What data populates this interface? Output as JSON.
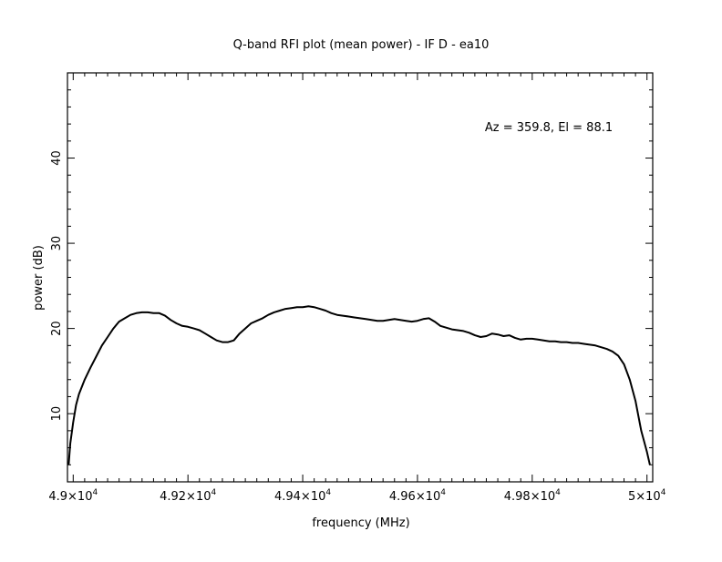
{
  "chart_data": {
    "type": "line",
    "title": "Q-band RFI plot (mean power) - IF D - ea10",
    "xlabel": "frequency (MHz)",
    "ylabel": "power (dB)",
    "xlim": [
      48990,
      50010
    ],
    "ylim": [
      2,
      50
    ],
    "x_ticks": [
      {
        "value": 49000,
        "label": "4.9×10",
        "exp": "4"
      },
      {
        "value": 49200,
        "label": "4.92×10",
        "exp": "4"
      },
      {
        "value": 49400,
        "label": "4.94×10",
        "exp": "4"
      },
      {
        "value": 49600,
        "label": "4.96×10",
        "exp": "4"
      },
      {
        "value": 49800,
        "label": "4.98×10",
        "exp": "4"
      },
      {
        "value": 50000,
        "label": "5×10",
        "exp": "4"
      }
    ],
    "y_ticks": [
      {
        "value": 10,
        "label": "10"
      },
      {
        "value": 20,
        "label": "20"
      },
      {
        "value": 30,
        "label": "30"
      },
      {
        "value": 40,
        "label": "40"
      }
    ],
    "grid": false,
    "annotation": "Az = 359.8, El = 88.1",
    "series": [
      {
        "color": "#000000",
        "points": [
          [
            48992,
            4.0
          ],
          [
            48995,
            6.5
          ],
          [
            49000,
            9.0
          ],
          [
            49005,
            11.0
          ],
          [
            49010,
            12.3
          ],
          [
            49020,
            14.0
          ],
          [
            49030,
            15.4
          ],
          [
            49040,
            16.7
          ],
          [
            49050,
            18.0
          ],
          [
            49060,
            19.0
          ],
          [
            49070,
            20.0
          ],
          [
            49080,
            20.8
          ],
          [
            49090,
            21.2
          ],
          [
            49100,
            21.6
          ],
          [
            49110,
            21.8
          ],
          [
            49120,
            21.9
          ],
          [
            49130,
            21.9
          ],
          [
            49140,
            21.8
          ],
          [
            49150,
            21.8
          ],
          [
            49160,
            21.5
          ],
          [
            49170,
            21.0
          ],
          [
            49180,
            20.6
          ],
          [
            49190,
            20.3
          ],
          [
            49200,
            20.2
          ],
          [
            49210,
            20.0
          ],
          [
            49220,
            19.8
          ],
          [
            49230,
            19.4
          ],
          [
            49240,
            19.0
          ],
          [
            49250,
            18.6
          ],
          [
            49260,
            18.4
          ],
          [
            49270,
            18.4
          ],
          [
            49280,
            18.6
          ],
          [
            49290,
            19.4
          ],
          [
            49300,
            20.0
          ],
          [
            49310,
            20.6
          ],
          [
            49320,
            20.9
          ],
          [
            49330,
            21.2
          ],
          [
            49340,
            21.6
          ],
          [
            49350,
            21.9
          ],
          [
            49360,
            22.1
          ],
          [
            49370,
            22.3
          ],
          [
            49380,
            22.4
          ],
          [
            49390,
            22.5
          ],
          [
            49400,
            22.5
          ],
          [
            49410,
            22.6
          ],
          [
            49420,
            22.5
          ],
          [
            49430,
            22.3
          ],
          [
            49440,
            22.1
          ],
          [
            49450,
            21.8
          ],
          [
            49460,
            21.6
          ],
          [
            49470,
            21.5
          ],
          [
            49480,
            21.4
          ],
          [
            49490,
            21.3
          ],
          [
            49500,
            21.2
          ],
          [
            49510,
            21.1
          ],
          [
            49520,
            21.0
          ],
          [
            49530,
            20.9
          ],
          [
            49540,
            20.9
          ],
          [
            49550,
            21.0
          ],
          [
            49560,
            21.1
          ],
          [
            49570,
            21.0
          ],
          [
            49580,
            20.9
          ],
          [
            49590,
            20.8
          ],
          [
            49600,
            20.9
          ],
          [
            49610,
            21.1
          ],
          [
            49620,
            21.2
          ],
          [
            49630,
            20.8
          ],
          [
            49640,
            20.3
          ],
          [
            49650,
            20.1
          ],
          [
            49660,
            19.9
          ],
          [
            49670,
            19.8
          ],
          [
            49680,
            19.7
          ],
          [
            49690,
            19.5
          ],
          [
            49700,
            19.2
          ],
          [
            49710,
            19.0
          ],
          [
            49720,
            19.1
          ],
          [
            49730,
            19.4
          ],
          [
            49740,
            19.3
          ],
          [
            49750,
            19.1
          ],
          [
            49760,
            19.2
          ],
          [
            49770,
            18.9
          ],
          [
            49780,
            18.7
          ],
          [
            49790,
            18.8
          ],
          [
            49800,
            18.8
          ],
          [
            49810,
            18.7
          ],
          [
            49820,
            18.6
          ],
          [
            49830,
            18.5
          ],
          [
            49840,
            18.5
          ],
          [
            49850,
            18.4
          ],
          [
            49860,
            18.4
          ],
          [
            49870,
            18.3
          ],
          [
            49880,
            18.3
          ],
          [
            49890,
            18.2
          ],
          [
            49900,
            18.1
          ],
          [
            49910,
            18.0
          ],
          [
            49920,
            17.8
          ],
          [
            49930,
            17.6
          ],
          [
            49940,
            17.3
          ],
          [
            49950,
            16.8
          ],
          [
            49960,
            15.8
          ],
          [
            49970,
            14.0
          ],
          [
            49980,
            11.5
          ],
          [
            49990,
            8.0
          ],
          [
            50000,
            5.5
          ],
          [
            50005,
            4.0
          ]
        ]
      }
    ]
  }
}
